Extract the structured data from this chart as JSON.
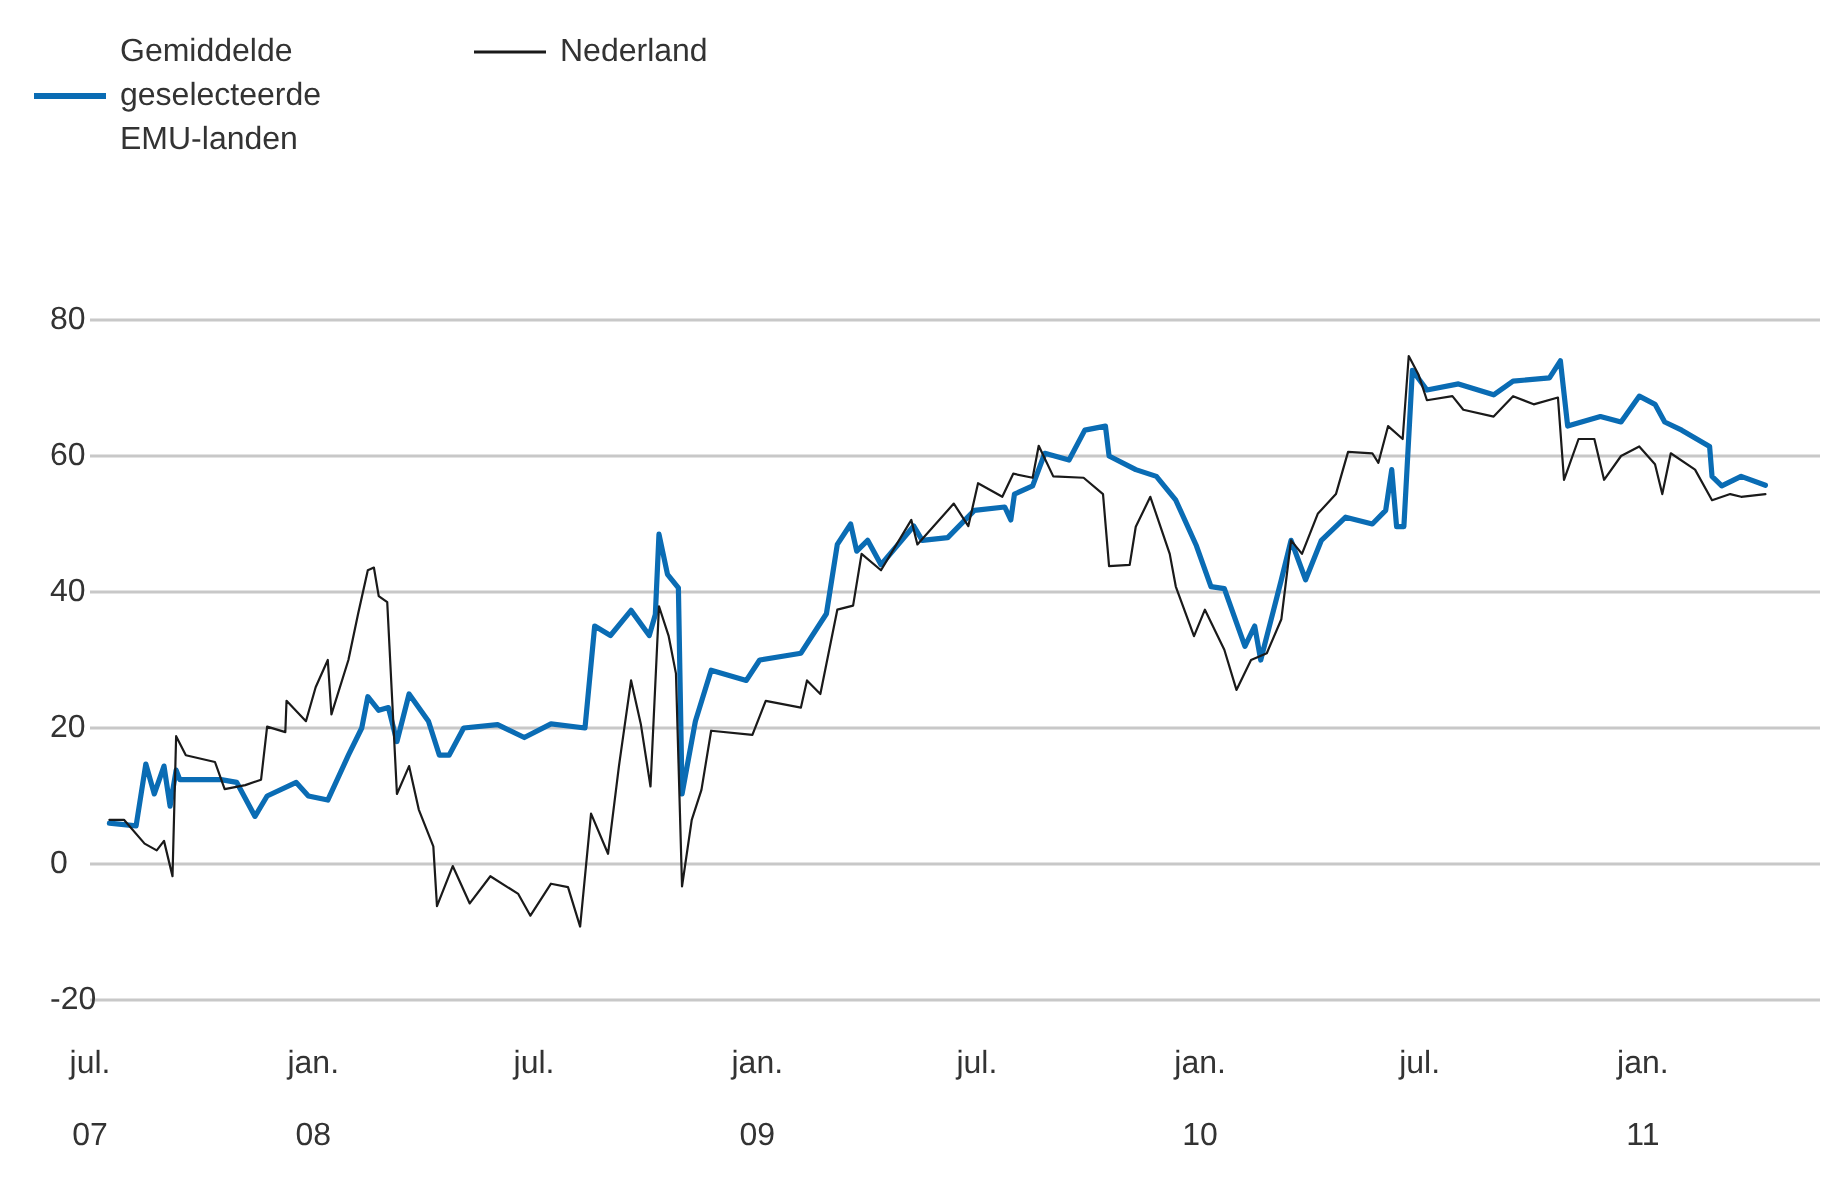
{
  "chart_data": {
    "type": "line",
    "legend": "top left",
    "grid": "y",
    "marker": "none",
    "line_style": "solid",
    "ylim": [
      -20,
      80
    ],
    "yticks": [
      -20,
      0,
      20,
      40,
      60,
      80
    ],
    "xlim": [
      "2007-07-01",
      "2011-05-27"
    ],
    "xticks": [
      {
        "value": "2007-07-01",
        "label": "jul.\n07"
      },
      {
        "value": "2008-01-01",
        "label": "jan.\n08"
      },
      {
        "value": "2008-07-01",
        "label": "jul."
      },
      {
        "value": "2009-01-01",
        "label": "jan.\n09"
      },
      {
        "value": "2009-07-01",
        "label": "jul."
      },
      {
        "value": "2010-01-01",
        "label": "jan.\n10"
      },
      {
        "value": "2010-07-01",
        "label": "jul."
      },
      {
        "value": "2011-01-01",
        "label": "jan.\n11"
      }
    ],
    "series": [
      {
        "name": "Gemiddelde geselecteerde EMU-landen",
        "color": "#0a6cb4",
        "x": [
          "2007-07-17",
          "2007-08-08",
          "2007-08-16",
          "2007-08-23",
          "2007-08-31",
          "2007-09-05",
          "2007-09-10",
          "2007-09-13",
          "2007-10-17",
          "2007-10-30",
          "2007-11-14",
          "2007-11-24",
          "2007-12-18",
          "2007-12-28",
          "2008-01-13",
          "2008-01-30",
          "2008-02-10",
          "2008-02-15",
          "2008-02-24",
          "2008-03-03",
          "2008-03-10",
          "2008-03-20",
          "2008-04-05",
          "2008-04-14",
          "2008-04-22",
          "2008-05-04",
          "2008-06-01",
          "2008-06-23",
          "2008-07-15",
          "2008-08-12",
          "2008-08-20",
          "2008-09-02",
          "2008-09-19",
          "2008-10-04",
          "2008-10-09",
          "2008-10-12",
          "2008-10-19",
          "2008-10-28",
          "2008-10-31",
          "2008-11-11",
          "2008-11-24",
          "2008-12-23",
          "2009-01-03",
          "2009-02-06",
          "2009-02-27",
          "2009-03-08",
          "2009-03-19",
          "2009-03-24",
          "2009-04-02",
          "2009-04-13",
          "2009-05-10",
          "2009-05-17",
          "2009-06-07",
          "2009-06-29",
          "2009-07-24",
          "2009-07-29",
          "2009-08-01",
          "2009-08-16",
          "2009-08-26",
          "2009-09-15",
          "2009-09-28",
          "2009-10-15",
          "2009-10-18",
          "2009-11-09",
          "2009-11-26",
          "2009-12-12",
          "2009-12-29",
          "2010-01-10",
          "2010-01-21",
          "2010-02-07",
          "2010-02-15",
          "2010-02-20",
          "2010-03-09",
          "2010-03-17",
          "2010-03-29",
          "2010-04-11",
          "2010-05-01",
          "2010-05-23",
          "2010-06-03",
          "2010-06-08",
          "2010-06-12",
          "2010-06-18",
          "2010-06-25",
          "2010-07-07",
          "2010-08-02",
          "2010-08-31",
          "2010-09-16",
          "2010-10-16",
          "2010-10-25",
          "2010-10-31",
          "2010-11-27",
          "2010-12-14",
          "2010-12-29",
          "2011-01-11",
          "2011-01-19",
          "2011-02-02",
          "2011-02-25",
          "2011-02-27",
          "2011-03-07",
          "2011-03-23",
          "2011-04-12"
        ],
        "values": [
          6,
          5.6,
          14.7,
          10.3,
          14.4,
          8.5,
          13.8,
          12.4,
          12.4,
          12,
          7,
          10,
          12,
          10,
          9.4,
          16,
          20,
          24.6,
          22.6,
          23,
          18,
          25,
          21,
          16,
          16,
          20,
          20.5,
          18.6,
          20.6,
          20,
          35,
          33.6,
          37.3,
          33.6,
          36.7,
          48.5,
          42.6,
          40.6,
          10.3,
          21,
          28.5,
          27,
          30,
          31,
          36.8,
          47,
          50,
          46,
          47.6,
          44,
          49.7,
          47.6,
          48,
          52,
          52.5,
          50.6,
          54.4,
          55.6,
          60.4,
          59.4,
          63.8,
          64.4,
          60,
          58,
          57,
          53.5,
          46.8,
          40.8,
          40.5,
          32,
          35,
          30,
          41.8,
          47.6,
          41.8,
          47.6,
          51,
          50,
          52,
          58,
          49.6,
          49.6,
          72.6,
          69.7,
          70.6,
          69,
          71,
          71.5,
          74,
          64.4,
          65.8,
          65,
          68.8,
          67.6,
          65,
          63.8,
          61.4,
          57,
          55.6,
          57,
          55.7
        ]
      },
      {
        "name": "Nederland",
        "color": "#1a1a1a",
        "x": [
          "2007-07-17",
          "2007-07-29",
          "2007-08-15",
          "2007-08-25",
          "2007-08-31",
          "2007-09-07",
          "2007-09-10",
          "2007-09-18",
          "2007-10-12",
          "2007-10-20",
          "2007-11-06",
          "2007-11-19",
          "2007-11-24",
          "2007-12-09",
          "2007-12-10",
          "2007-12-26",
          "2008-01-03",
          "2008-01-13",
          "2008-01-16",
          "2008-01-30",
          "2008-02-07",
          "2008-02-15",
          "2008-02-20",
          "2008-02-24",
          "2008-03-02",
          "2008-03-10",
          "2008-03-20",
          "2008-03-28",
          "2008-04-09",
          "2008-04-12",
          "2008-04-25",
          "2008-05-09",
          "2008-05-26",
          "2008-06-18",
          "2008-06-28",
          "2008-07-15",
          "2008-07-29",
          "2008-08-08",
          "2008-08-17",
          "2008-08-31",
          "2008-09-09",
          "2008-09-19",
          "2008-09-27",
          "2008-10-05",
          "2008-10-12",
          "2008-10-20",
          "2008-10-26",
          "2008-10-31",
          "2008-11-08",
          "2008-11-16",
          "2008-11-24",
          "2008-12-28",
          "2009-01-08",
          "2009-02-06",
          "2009-02-11",
          "2009-02-22",
          "2009-03-08",
          "2009-03-21",
          "2009-03-28",
          "2009-04-13",
          "2009-05-08",
          "2009-05-13",
          "2009-06-12",
          "2009-06-24",
          "2009-07-02",
          "2009-07-22",
          "2009-07-31",
          "2009-08-16",
          "2009-08-21",
          "2009-09-02",
          "2009-09-27",
          "2009-10-13",
          "2009-10-18",
          "2009-11-04",
          "2009-11-09",
          "2009-11-21",
          "2009-12-07",
          "2009-12-12",
          "2009-12-27",
          "2010-01-05",
          "2010-01-21",
          "2010-01-31",
          "2010-02-12",
          "2010-02-25",
          "2010-03-09",
          "2010-03-17",
          "2010-03-26",
          "2010-04-08",
          "2010-04-23",
          "2010-05-03",
          "2010-05-23",
          "2010-05-28",
          "2010-06-05",
          "2010-06-17",
          "2010-06-22",
          "2010-06-30",
          "2010-07-07",
          "2010-07-28",
          "2010-08-06",
          "2010-08-31",
          "2010-09-16",
          "2010-10-03",
          "2010-10-23",
          "2010-10-28",
          "2010-11-09",
          "2010-11-22",
          "2010-11-30",
          "2010-12-14",
          "2010-12-29",
          "2011-01-11",
          "2011-01-17",
          "2011-01-24",
          "2011-02-13",
          "2011-02-27",
          "2011-03-14",
          "2011-03-23",
          "2011-04-12"
        ],
        "values": [
          6.5,
          6.5,
          3,
          2,
          3.4,
          -1.8,
          18.8,
          16,
          15,
          11,
          11.6,
          12.4,
          20.2,
          19.4,
          24,
          21,
          26,
          30,
          22,
          30,
          36.8,
          43.2,
          43.6,
          39.4,
          38.5,
          10.3,
          14.4,
          8,
          2.6,
          -6.2,
          -0.3,
          -5.8,
          -1.8,
          -4.4,
          -7.6,
          -2.9,
          -3.4,
          -9.2,
          7.4,
          1.5,
          14.4,
          27,
          20.6,
          11.4,
          37.9,
          33.5,
          28,
          -3.3,
          6.5,
          10.9,
          19.6,
          19,
          24,
          23,
          27,
          25,
          37.4,
          38,
          45.6,
          43.2,
          50.6,
          47,
          53,
          49.7,
          56,
          54,
          57.4,
          56.8,
          61.5,
          57,
          56.8,
          54.4,
          43.8,
          44,
          49.6,
          54,
          45.6,
          40.8,
          33.5,
          37.4,
          31.5,
          25.6,
          30,
          31,
          36,
          47.6,
          45.6,
          51.5,
          54.4,
          60.6,
          60.4,
          59,
          64.4,
          62.5,
          74.7,
          72,
          68.2,
          68.8,
          66.8,
          65.8,
          68.8,
          67.6,
          68.6,
          56.5,
          62.5,
          62.5,
          56.5,
          60,
          61.4,
          58.8,
          54.4,
          60.4,
          58,
          53.5,
          54.4,
          54,
          54.4
        ]
      }
    ]
  }
}
